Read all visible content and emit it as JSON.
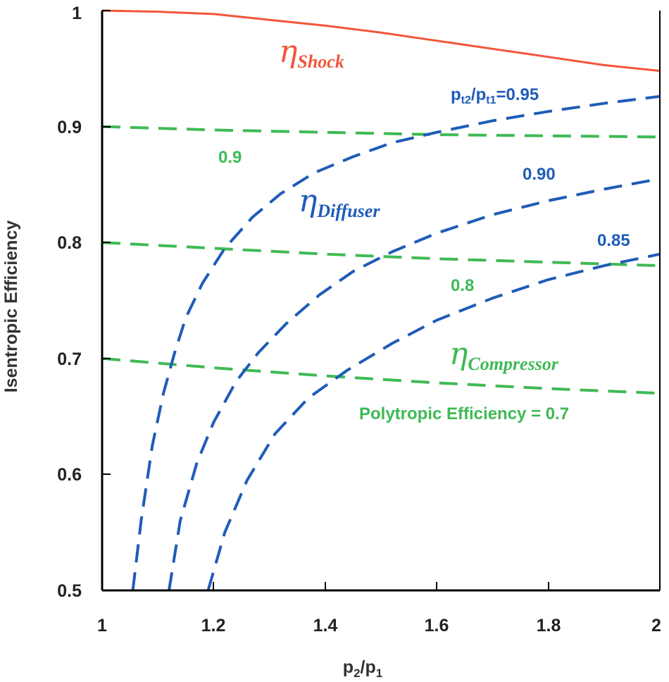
{
  "colors": {
    "shock": "#f2553b",
    "diffuser": "#1f5cb8",
    "compressor": "#3fba55",
    "axis": "#000000",
    "text": "#222222"
  },
  "chart_data": {
    "type": "line",
    "xlabel": "p2/p1",
    "ylabel": "Isentropic Efficiency",
    "xlim": [
      1,
      2
    ],
    "ylim": [
      0.5,
      1
    ],
    "xticks": [
      "1",
      "1.2",
      "1.4",
      "1.6",
      "1.8",
      "2"
    ],
    "yticks": [
      "0.5",
      "0.6",
      "0.7",
      "0.8",
      "0.9",
      "1"
    ],
    "grid": false,
    "series": [
      {
        "group": "shock",
        "style": "solid",
        "x": [
          1.0,
          1.1,
          1.2,
          1.3,
          1.4,
          1.5,
          1.6,
          1.7,
          1.8,
          1.9,
          2.0
        ],
        "y": [
          1.0,
          0.999,
          0.997,
          0.992,
          0.987,
          0.981,
          0.974,
          0.967,
          0.96,
          0.953,
          0.948
        ]
      },
      {
        "group": "compressor",
        "style": "dashed",
        "x": [
          1.0,
          1.2,
          1.4,
          1.6,
          1.8,
          2.0
        ],
        "y": [
          0.9,
          0.897,
          0.895,
          0.893,
          0.892,
          0.891
        ]
      },
      {
        "group": "compressor",
        "style": "dashed",
        "x": [
          1.0,
          1.2,
          1.4,
          1.6,
          1.8,
          2.0
        ],
        "y": [
          0.8,
          0.795,
          0.79,
          0.786,
          0.783,
          0.78
        ]
      },
      {
        "group": "compressor",
        "style": "dashed",
        "x": [
          1.0,
          1.2,
          1.4,
          1.6,
          1.8,
          2.0
        ],
        "y": [
          0.7,
          0.692,
          0.685,
          0.679,
          0.674,
          0.67
        ]
      },
      {
        "group": "diffuser",
        "style": "dashed",
        "x": [
          1.055,
          1.07,
          1.09,
          1.11,
          1.13,
          1.15,
          1.18,
          1.22,
          1.27,
          1.32,
          1.38,
          1.45,
          1.52,
          1.6,
          1.7,
          1.8,
          1.9,
          2.0
        ],
        "y": [
          0.5,
          0.56,
          0.625,
          0.67,
          0.705,
          0.735,
          0.765,
          0.795,
          0.822,
          0.842,
          0.86,
          0.874,
          0.886,
          0.895,
          0.905,
          0.913,
          0.92,
          0.926
        ]
      },
      {
        "group": "diffuser",
        "style": "dashed",
        "x": [
          1.12,
          1.14,
          1.17,
          1.2,
          1.24,
          1.28,
          1.33,
          1.39,
          1.45,
          1.52,
          1.6,
          1.7,
          1.8,
          1.9,
          2.0
        ],
        "y": [
          0.5,
          0.56,
          0.61,
          0.645,
          0.68,
          0.705,
          0.73,
          0.755,
          0.775,
          0.792,
          0.808,
          0.824,
          0.836,
          0.846,
          0.855
        ]
      },
      {
        "group": "diffuser",
        "style": "dashed",
        "x": [
          1.19,
          1.22,
          1.26,
          1.31,
          1.37,
          1.44,
          1.52,
          1.6,
          1.7,
          1.8,
          1.9,
          2.0
        ],
        "y": [
          0.5,
          0.55,
          0.595,
          0.635,
          0.666,
          0.69,
          0.713,
          0.733,
          0.752,
          0.768,
          0.78,
          0.79
        ]
      }
    ],
    "annotations": {
      "shock_sub": "Shock",
      "diffuser_sub": "Diffuser",
      "compressor_sub": "Compressor",
      "pt_p": "p",
      "pt_t2": "t2",
      "pt_slash": "/p",
      "pt_t1": "t1",
      "pt_val": "=0.95",
      "d090": "0.90",
      "d085": "0.85",
      "c09": "0.9",
      "c08": "0.8",
      "c07": "Polytropic Efficiency = 0.7"
    }
  }
}
